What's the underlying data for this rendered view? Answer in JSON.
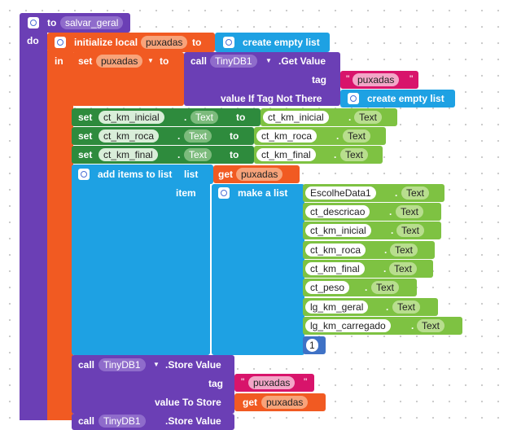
{
  "procedure": {
    "to": "to",
    "name": "salvar_geral",
    "do": "do"
  },
  "init_local": {
    "label": "initialize local",
    "var": "puxadas",
    "to": "to",
    "in": "in"
  },
  "create_empty_list": "create empty list",
  "set_puxadas": {
    "set": "set",
    "var": "puxadas",
    "to": "to"
  },
  "get_value": {
    "call": "call",
    "component": "TinyDB1",
    "method": ".Get Value",
    "tag_label": "tag",
    "tag_value": "puxadas",
    "default_label": "value If Tag Not There"
  },
  "set_rows": [
    {
      "set": "set",
      "component": "ct_km_inicial",
      "prop": "Text",
      "to": "to",
      "src_component": "ct_km_inicial",
      "src_prop": "Text"
    },
    {
      "set": "set",
      "component": "ct_km_roca",
      "prop": "Text",
      "to": "to",
      "src_component": "ct_km_roca",
      "src_prop": "Text"
    },
    {
      "set": "set",
      "component": "ct_km_final",
      "prop": "Text",
      "to": "to",
      "src_component": "ct_km_final",
      "src_prop": "Text"
    }
  ],
  "add_items": {
    "label": "add items to list",
    "list_label": "list",
    "get": "get",
    "list_var": "puxadas",
    "item_label": "item"
  },
  "make_list": {
    "label": "make a list",
    "items": [
      {
        "component": "EscolheData1",
        "prop": "Text"
      },
      {
        "component": "ct_descricao",
        "prop": "Text"
      },
      {
        "component": "ct_km_inicial",
        "prop": "Text"
      },
      {
        "component": "ct_km_roca",
        "prop": "Text"
      },
      {
        "component": "ct_km_final",
        "prop": "Text"
      },
      {
        "component": "ct_peso",
        "prop": "Text"
      },
      {
        "component": "lg_km_geral",
        "prop": "Text"
      },
      {
        "component": "lg_km_carregado",
        "prop": "Text"
      }
    ],
    "number": "1"
  },
  "store_value": {
    "call": "call",
    "component": "TinyDB1",
    "method": ".Store Value",
    "tag_label": "tag",
    "tag_value": "puxadas",
    "value_label": "value To Store",
    "get": "get",
    "get_var": "puxadas"
  },
  "store_value_2": {
    "call": "call",
    "component": "TinyDB1",
    "method": ".Store Value"
  },
  "colors": {
    "procedure": "#6b3fb5",
    "variables": "#f15a22",
    "component_set": "#2e8b3d",
    "component_get": "#7ec242",
    "lists": "#1ea1e3",
    "text": "#d8146b",
    "math": "#3f72c6"
  }
}
